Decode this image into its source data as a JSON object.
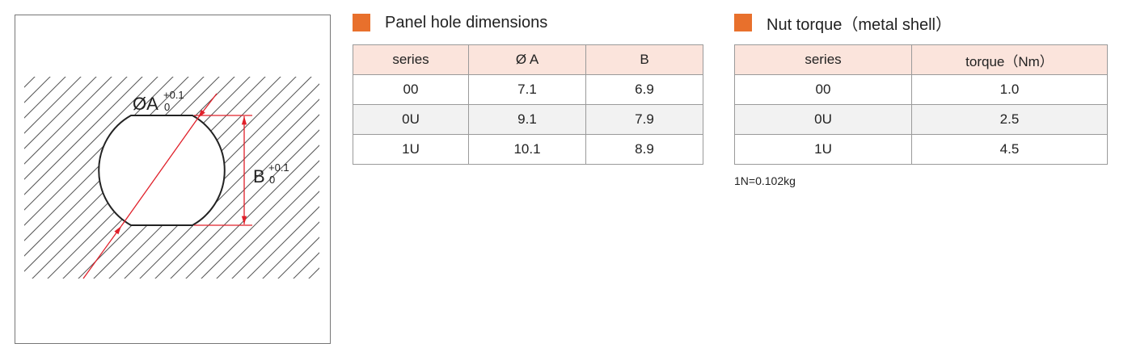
{
  "diagram": {
    "hole_label": "ØA",
    "hole_lower": "0",
    "hole_upper": "+0.1",
    "width_label": "B",
    "width_lower": "0",
    "width_upper": "+0.1"
  },
  "panel_table": {
    "title": "Panel hole dimensions",
    "header": [
      "series",
      "Ø A",
      "B"
    ],
    "rows": [
      [
        "00",
        "7.1",
        "6.9"
      ],
      [
        "0U",
        "9.1",
        "7.9"
      ],
      [
        "1U",
        "10.1",
        "8.9"
      ]
    ]
  },
  "torque_table": {
    "title": "Nut torque（metal shell）",
    "header": [
      "series",
      "torque（Nm）"
    ],
    "rows": [
      [
        "00",
        "1.0"
      ],
      [
        "0U",
        "2.5"
      ],
      [
        "1U",
        "4.5"
      ]
    ],
    "note": "1N=0.102kg"
  }
}
